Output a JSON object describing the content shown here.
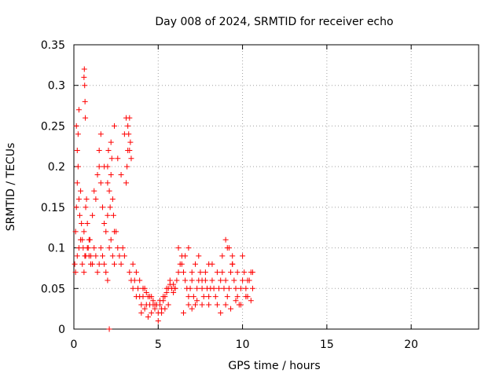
{
  "chart_data": {
    "type": "scatter",
    "title": "Day 008 of 2024, SRMTID for receiver echo",
    "xlabel": "GPS time / hours",
    "ylabel": "SRMTID / TECUs",
    "xlim": [
      0,
      24
    ],
    "ylim": [
      0,
      0.35
    ],
    "xticks": [
      0,
      5,
      10,
      15,
      20
    ],
    "yticks": [
      0,
      0.05,
      0.1,
      0.15,
      0.2,
      0.25,
      0.3,
      0.35
    ],
    "xtick_labels": [
      "0",
      "5",
      "10",
      "15",
      "20"
    ],
    "ytick_labels": [
      "0",
      "0.05",
      "0.1",
      "0.15",
      "0.2",
      "0.25",
      "0.3",
      "0.35"
    ],
    "grid": true,
    "marker": "+",
    "color": "#ff0000",
    "series": [
      {
        "x": [
          0.05,
          0.1,
          0.15,
          0.2,
          0.25,
          0.3,
          0.35,
          0.4,
          0.45,
          0.5,
          0.55,
          0.6,
          0.65,
          0.7,
          0.75,
          0.8,
          0.85,
          0.9,
          0.95,
          1.0,
          0.1,
          0.2,
          0.3,
          0.4,
          0.5,
          0.6,
          0.7,
          0.8,
          0.9,
          1.0,
          1.1,
          1.2,
          1.3,
          1.4,
          1.5,
          1.6,
          1.7,
          1.8,
          1.9,
          2.0,
          0.6,
          0.62,
          0.64,
          0.66,
          0.68,
          0.15,
          0.2,
          0.25,
          0.3,
          1.1,
          1.2,
          1.3,
          1.4,
          1.5,
          1.6,
          1.7,
          1.8,
          1.9,
          2.0,
          2.1,
          2.2,
          2.3,
          2.4,
          2.5,
          2.6,
          2.7,
          2.8,
          2.9,
          3.0,
          1.5,
          1.6,
          1.8,
          2.0,
          2.2,
          2.4,
          2.6,
          2.8,
          3.0,
          3.1,
          3.2,
          3.3,
          2.0,
          2.05,
          2.1,
          2.15,
          2.2,
          2.25,
          2.3,
          2.35,
          2.4,
          3.1,
          3.15,
          3.2,
          3.25,
          3.3,
          3.35,
          3.4,
          2.1,
          3.3,
          3.4,
          3.5,
          3.6,
          3.7,
          3.8,
          3.9,
          4.0,
          4.1,
          4.2,
          4.3,
          4.4,
          4.5,
          4.6,
          4.7,
          4.8,
          4.9,
          5.0,
          5.1,
          5.2,
          5.3,
          5.4,
          5.5,
          5.6,
          5.7,
          5.8,
          5.9,
          6.0,
          3.5,
          3.7,
          3.9,
          4.1,
          4.3,
          4.5,
          4.7,
          4.9,
          5.1,
          5.3,
          5.5,
          5.7,
          5.9,
          4.0,
          4.2,
          4.4,
          4.6,
          4.8,
          5.0,
          5.2,
          5.4,
          5.6,
          6.0,
          6.1,
          6.2,
          6.3,
          6.4,
          6.5,
          6.6,
          6.7,
          6.8,
          6.9,
          7.0,
          7.1,
          7.2,
          7.3,
          7.4,
          7.5,
          7.6,
          7.7,
          7.8,
          7.9,
          8.0,
          6.2,
          6.4,
          6.6,
          6.8,
          7.0,
          7.2,
          7.4,
          7.6,
          7.8,
          8.0,
          6.5,
          6.8,
          7.0,
          7.3,
          7.6,
          8.0,
          8.1,
          8.2,
          8.3,
          8.4,
          8.5,
          8.6,
          8.7,
          8.8,
          8.9,
          9.0,
          9.1,
          9.2,
          9.3,
          9.4,
          9.5,
          9.6,
          9.7,
          9.8,
          9.9,
          10.0,
          10.1,
          10.2,
          10.3,
          10.4,
          10.5,
          10.6,
          8.2,
          8.5,
          8.8,
          9.1,
          9.4,
          9.7,
          10.0,
          10.3,
          10.6,
          8.7,
          9.0,
          9.3,
          9.6,
          9.9,
          10.2,
          10.5,
          9.0,
          9.2,
          9.4
        ],
        "y": [
          0.08,
          0.12,
          0.15,
          0.18,
          0.2,
          0.16,
          0.14,
          0.17,
          0.13,
          0.11,
          0.1,
          0.12,
          0.09,
          0.15,
          0.16,
          0.13,
          0.1,
          0.09,
          0.11,
          0.08,
          0.07,
          0.09,
          0.1,
          0.11,
          0.08,
          0.07,
          0.09,
          0.1,
          0.11,
          0.09,
          0.08,
          0.1,
          0.09,
          0.07,
          0.08,
          0.1,
          0.09,
          0.08,
          0.07,
          0.06,
          0.31,
          0.32,
          0.3,
          0.28,
          0.26,
          0.25,
          0.22,
          0.24,
          0.27,
          0.14,
          0.17,
          0.16,
          0.19,
          0.2,
          0.18,
          0.15,
          0.13,
          0.12,
          0.14,
          0.1,
          0.11,
          0.09,
          0.08,
          0.12,
          0.1,
          0.09,
          0.08,
          0.1,
          0.09,
          0.22,
          0.24,
          0.2,
          0.18,
          0.23,
          0.25,
          0.21,
          0.19,
          0.24,
          0.26,
          0.25,
          0.22,
          0.2,
          0.22,
          0.17,
          0.15,
          0.19,
          0.21,
          0.16,
          0.14,
          0.12,
          0.18,
          0.2,
          0.22,
          0.24,
          0.26,
          0.23,
          0.21,
          0.0,
          0.07,
          0.06,
          0.05,
          0.06,
          0.04,
          0.05,
          0.04,
          0.03,
          0.04,
          0.05,
          0.03,
          0.04,
          0.03,
          0.04,
          0.03,
          0.025,
          0.03,
          0.02,
          0.03,
          0.025,
          0.035,
          0.04,
          0.045,
          0.05,
          0.055,
          0.05,
          0.045,
          0.05,
          0.08,
          0.07,
          0.06,
          0.05,
          0.045,
          0.04,
          0.035,
          0.03,
          0.035,
          0.04,
          0.05,
          0.06,
          0.055,
          0.02,
          0.025,
          0.015,
          0.02,
          0.03,
          0.01,
          0.02,
          0.025,
          0.03,
          0.05,
          0.06,
          0.07,
          0.08,
          0.09,
          0.07,
          0.06,
          0.05,
          0.04,
          0.05,
          0.06,
          0.04,
          0.03,
          0.05,
          0.06,
          0.07,
          0.05,
          0.04,
          0.06,
          0.05,
          0.03,
          0.1,
          0.08,
          0.09,
          0.1,
          0.07,
          0.08,
          0.09,
          0.06,
          0.07,
          0.08,
          0.02,
          0.03,
          0.025,
          0.035,
          0.03,
          0.04,
          0.05,
          0.06,
          0.05,
          0.04,
          0.03,
          0.05,
          0.06,
          0.07,
          0.05,
          0.06,
          0.04,
          0.05,
          0.07,
          0.08,
          0.06,
          0.05,
          0.04,
          0.03,
          0.05,
          0.06,
          0.07,
          0.05,
          0.04,
          0.06,
          0.07,
          0.05,
          0.08,
          0.07,
          0.09,
          0.1,
          0.08,
          0.07,
          0.09,
          0.06,
          0.07,
          0.02,
          0.03,
          0.025,
          0.035,
          0.03,
          0.04,
          0.035,
          0.11,
          0.1,
          0.09
        ]
      }
    ]
  }
}
